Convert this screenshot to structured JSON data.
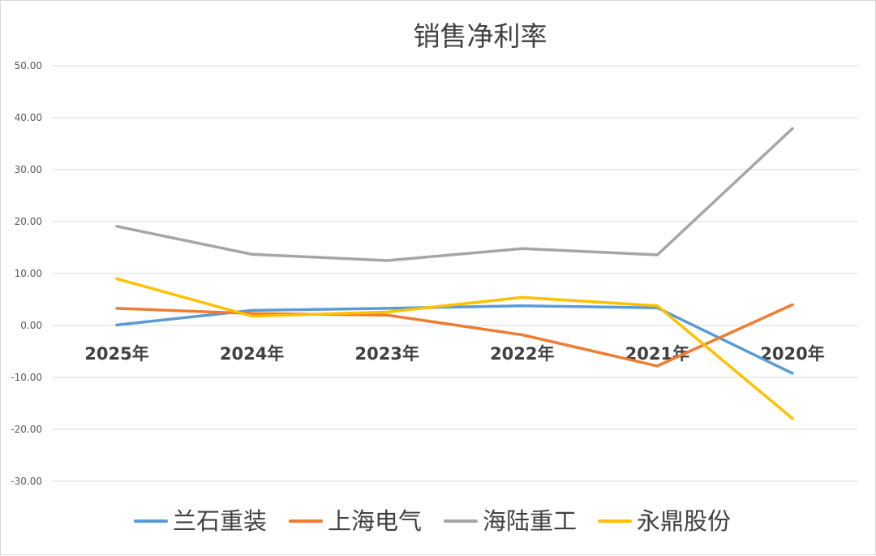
{
  "chart_data": {
    "type": "line",
    "title": "销售净利率",
    "categories": [
      "2025年",
      "2024年",
      "2023年",
      "2022年",
      "2021年",
      "2020年"
    ],
    "ylim": [
      -30,
      50
    ],
    "yticks": [
      "50.00",
      "40.00",
      "30.00",
      "20.00",
      "10.00",
      "0.00",
      "-10.00",
      "-20.00",
      "-30.00"
    ],
    "ytick_values": [
      50,
      40,
      30,
      20,
      10,
      0,
      -10,
      -20,
      -30
    ],
    "grid": true,
    "legend_position": "bottom",
    "series": [
      {
        "name": "兰石重装",
        "color": "#5b9bd5",
        "values": [
          0.1,
          2.9,
          3.3,
          3.8,
          3.4,
          -9.2
        ]
      },
      {
        "name": "上海电气",
        "color": "#ed7d31",
        "values": [
          3.3,
          2.3,
          2.0,
          -1.8,
          -7.8,
          4.0
        ]
      },
      {
        "name": "海陆重工",
        "color": "#a5a5a5",
        "values": [
          19.1,
          13.7,
          12.5,
          14.8,
          13.6,
          37.9
        ]
      },
      {
        "name": "永鼎股份",
        "color": "#ffc000",
        "values": [
          9.0,
          1.8,
          2.6,
          5.4,
          3.8,
          -17.9
        ]
      }
    ]
  }
}
